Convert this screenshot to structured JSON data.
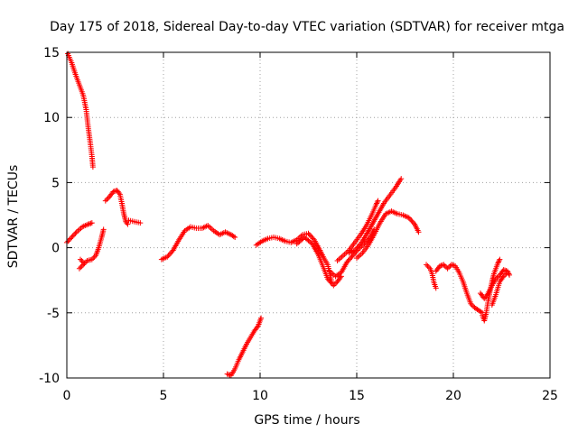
{
  "chart_data": {
    "type": "scatter",
    "title": "Day 175 of 2018, Sidereal Day-to-day VTEC variation (SDTVAR) for receiver mtga",
    "xlabel": "GPS time / hours",
    "ylabel": "SDTVAR / TECUs",
    "xlim": [
      0,
      25
    ],
    "ylim": [
      -10,
      15
    ],
    "xticks": [
      0,
      5,
      10,
      15,
      20,
      25
    ],
    "yticks": [
      -10,
      -5,
      0,
      5,
      10,
      15
    ],
    "grid": true,
    "marker": "+",
    "series": [
      {
        "name": "SDTVAR",
        "color": "#ff0000",
        "segments": [
          [
            [
              0.05,
              14.9
            ],
            [
              0.25,
              14.2
            ],
            [
              0.45,
              13.3
            ],
            [
              0.65,
              12.5
            ],
            [
              0.85,
              11.7
            ],
            [
              1.0,
              10.6
            ],
            [
              1.1,
              9.3
            ],
            [
              1.2,
              8.2
            ],
            [
              1.3,
              7.0
            ],
            [
              1.35,
              6.2
            ]
          ],
          [
            [
              0.0,
              0.4
            ],
            [
              0.25,
              0.8
            ],
            [
              0.5,
              1.2
            ],
            [
              0.8,
              1.6
            ],
            [
              1.1,
              1.8
            ],
            [
              1.3,
              1.9
            ]
          ],
          [
            [
              0.65,
              -1.6
            ],
            [
              0.85,
              -1.3
            ],
            [
              1.05,
              -1.0
            ],
            [
              1.3,
              -0.9
            ],
            [
              1.5,
              -0.6
            ],
            [
              1.65,
              0.0
            ],
            [
              1.8,
              0.8
            ],
            [
              1.9,
              1.4
            ]
          ],
          [
            [
              0.7,
              -0.9
            ],
            [
              0.9,
              -1.2
            ]
          ],
          [
            [
              2.0,
              3.6
            ],
            [
              2.2,
              3.9
            ],
            [
              2.4,
              4.3
            ],
            [
              2.6,
              4.4
            ],
            [
              2.75,
              4.1
            ],
            [
              2.85,
              3.4
            ],
            [
              2.95,
              2.6
            ],
            [
              3.05,
              2.0
            ],
            [
              3.15,
              1.8
            ]
          ],
          [
            [
              3.2,
              2.1
            ],
            [
              3.5,
              2.0
            ],
            [
              3.8,
              1.9
            ]
          ],
          [
            [
              4.9,
              -0.9
            ],
            [
              5.2,
              -0.7
            ],
            [
              5.5,
              -0.2
            ],
            [
              5.8,
              0.6
            ],
            [
              6.1,
              1.3
            ],
            [
              6.4,
              1.6
            ],
            [
              6.7,
              1.5
            ],
            [
              7.0,
              1.5
            ],
            [
              7.3,
              1.7
            ],
            [
              7.6,
              1.3
            ],
            [
              7.9,
              1.0
            ],
            [
              8.2,
              1.2
            ],
            [
              8.5,
              1.0
            ],
            [
              8.7,
              0.8
            ]
          ],
          [
            [
              8.3,
              -9.7
            ],
            [
              8.5,
              -9.8
            ],
            [
              8.7,
              -9.3
            ],
            [
              8.9,
              -8.6
            ],
            [
              9.1,
              -8.0
            ],
            [
              9.3,
              -7.4
            ],
            [
              9.5,
              -6.9
            ],
            [
              9.7,
              -6.4
            ],
            [
              9.9,
              -6.0
            ],
            [
              10.05,
              -5.4
            ]
          ],
          [
            [
              9.8,
              0.2
            ],
            [
              10.1,
              0.5
            ],
            [
              10.4,
              0.7
            ],
            [
              10.7,
              0.8
            ],
            [
              11.0,
              0.7
            ],
            [
              11.3,
              0.5
            ],
            [
              11.6,
              0.4
            ],
            [
              11.9,
              0.6
            ],
            [
              12.2,
              1.0
            ],
            [
              12.5,
              1.1
            ],
            [
              12.8,
              0.6
            ],
            [
              13.1,
              -0.2
            ],
            [
              13.3,
              -0.8
            ],
            [
              13.5,
              -1.3
            ],
            [
              13.7,
              -2.6
            ]
          ],
          [
            [
              11.9,
              0.3
            ],
            [
              12.3,
              0.8
            ],
            [
              12.7,
              0.3
            ],
            [
              13.0,
              -0.5
            ],
            [
              13.3,
              -1.6
            ],
            [
              13.5,
              -2.4
            ],
            [
              13.8,
              -2.9
            ],
            [
              14.0,
              -2.6
            ],
            [
              14.2,
              -2.2
            ]
          ],
          [
            [
              13.6,
              -1.8
            ],
            [
              13.9,
              -2.2
            ],
            [
              14.2,
              -1.9
            ],
            [
              14.5,
              -1.1
            ],
            [
              14.8,
              -0.6
            ],
            [
              15.1,
              -0.1
            ],
            [
              15.4,
              0.3
            ],
            [
              15.7,
              0.8
            ],
            [
              15.9,
              1.4
            ]
          ],
          [
            [
              14.0,
              -1.0
            ],
            [
              14.3,
              -0.6
            ],
            [
              14.6,
              -0.2
            ],
            [
              14.9,
              0.4
            ],
            [
              15.2,
              1.0
            ],
            [
              15.5,
              1.7
            ],
            [
              15.8,
              2.6
            ],
            [
              16.0,
              3.3
            ],
            [
              16.1,
              3.6
            ]
          ],
          [
            [
              14.6,
              -0.4
            ],
            [
              14.9,
              -0.2
            ],
            [
              15.2,
              0.3
            ],
            [
              15.5,
              1.0
            ],
            [
              15.8,
              1.8
            ],
            [
              16.1,
              2.6
            ],
            [
              16.4,
              3.4
            ],
            [
              16.7,
              4.0
            ],
            [
              17.0,
              4.6
            ],
            [
              17.3,
              5.3
            ]
          ],
          [
            [
              15.0,
              -0.8
            ],
            [
              15.3,
              -0.4
            ],
            [
              15.6,
              0.2
            ],
            [
              15.9,
              1.0
            ],
            [
              16.2,
              1.9
            ],
            [
              16.5,
              2.6
            ],
            [
              16.8,
              2.8
            ],
            [
              17.1,
              2.6
            ],
            [
              17.4,
              2.5
            ],
            [
              17.7,
              2.3
            ],
            [
              18.0,
              1.8
            ],
            [
              18.2,
              1.2
            ]
          ],
          [
            [
              18.6,
              -1.3
            ],
            [
              18.8,
              -1.6
            ],
            [
              18.9,
              -2.0
            ],
            [
              19.0,
              -2.7
            ],
            [
              19.1,
              -3.1
            ]
          ],
          [
            [
              19.1,
              -1.8
            ],
            [
              19.3,
              -1.4
            ],
            [
              19.5,
              -1.3
            ],
            [
              19.7,
              -1.6
            ],
            [
              19.9,
              -1.3
            ],
            [
              20.1,
              -1.4
            ],
            [
              20.3,
              -1.9
            ],
            [
              20.5,
              -2.6
            ],
            [
              20.7,
              -3.5
            ],
            [
              20.9,
              -4.3
            ],
            [
              21.1,
              -4.6
            ],
            [
              21.3,
              -4.8
            ],
            [
              21.5,
              -5.0
            ]
          ],
          [
            [
              21.5,
              -5.2
            ],
            [
              21.6,
              -5.6
            ],
            [
              21.7,
              -5.0
            ],
            [
              21.8,
              -4.1
            ],
            [
              21.9,
              -3.3
            ],
            [
              22.0,
              -2.6
            ],
            [
              22.1,
              -2.0
            ],
            [
              22.2,
              -1.6
            ],
            [
              22.3,
              -1.2
            ],
            [
              22.4,
              -0.9
            ]
          ],
          [
            [
              21.4,
              -3.5
            ],
            [
              21.6,
              -3.9
            ],
            [
              21.8,
              -3.5
            ],
            [
              22.0,
              -2.9
            ],
            [
              22.2,
              -2.4
            ],
            [
              22.4,
              -2.1
            ],
            [
              22.6,
              -1.7
            ],
            [
              22.8,
              -1.8
            ],
            [
              22.9,
              -2.1
            ]
          ],
          [
            [
              22.0,
              -4.4
            ],
            [
              22.2,
              -3.6
            ],
            [
              22.4,
              -2.6
            ],
            [
              22.6,
              -2.2
            ],
            [
              22.8,
              -1.9
            ]
          ]
        ]
      }
    ]
  }
}
